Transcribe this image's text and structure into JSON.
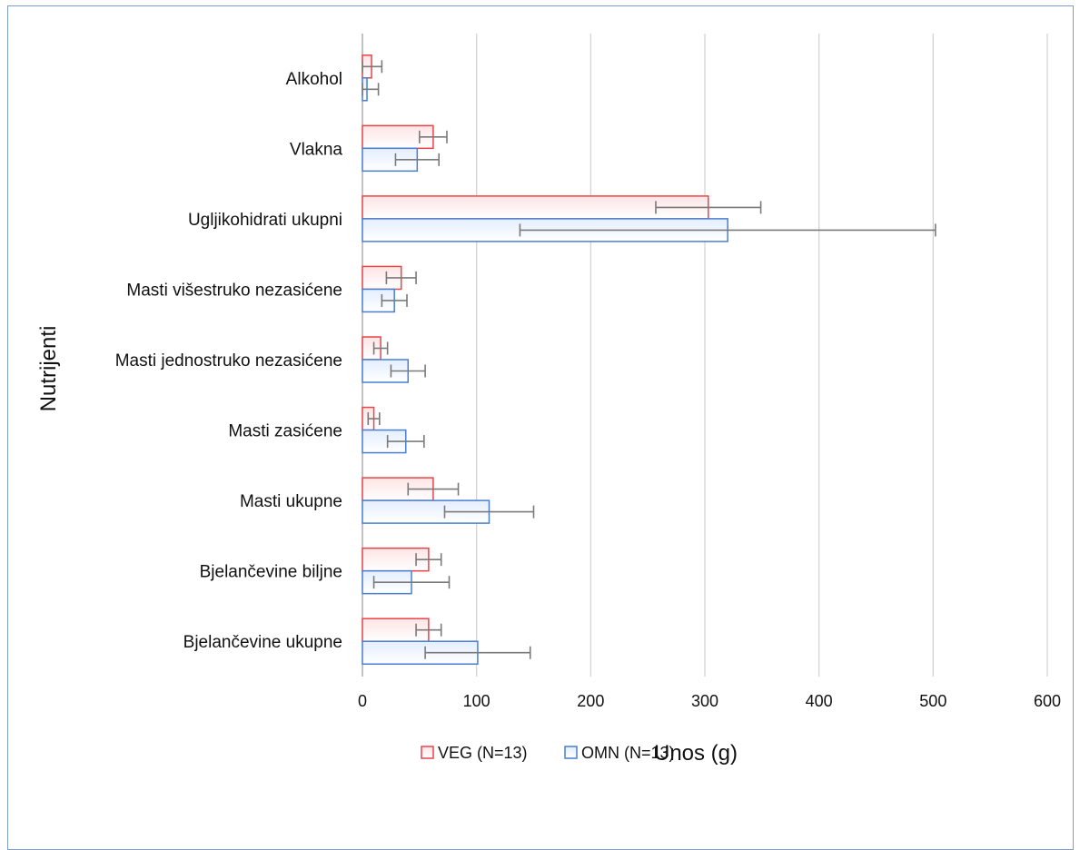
{
  "chart_data": {
    "type": "bar",
    "orientation": "horizontal",
    "categories": [
      "Bjelančevine ukupne",
      "Bjelančevine biljne",
      "Masti ukupne",
      "Masti zasićene",
      "Masti jednostruko nezasićene",
      "Masti višestruko nezasićene",
      "Ugljikohidrati ukupni",
      "Vlakna",
      "Alkohol"
    ],
    "series": [
      {
        "name": "VEG (N=13)",
        "color": "#e8444a",
        "fill_light": "#fde4e4",
        "values": [
          58,
          58,
          62,
          10,
          16,
          34,
          303,
          62,
          8
        ],
        "errors": [
          11,
          11,
          22,
          5,
          6,
          13,
          46,
          12,
          9
        ]
      },
      {
        "name": "OMN (N=13)",
        "color": "#4a7fd0",
        "fill_light": "#e4eeff",
        "values": [
          101,
          43,
          111,
          38,
          40,
          28,
          320,
          48,
          4
        ],
        "errors": [
          46,
          33,
          39,
          16,
          15,
          11,
          182,
          19,
          10
        ]
      }
    ],
    "xlabel": "Unos (g)",
    "ylabel": "Nutrijenti",
    "xlim": [
      0,
      600
    ],
    "xticks": [
      0,
      100,
      200,
      300,
      400,
      500,
      600
    ],
    "grid": "vertical",
    "legend": "bottom"
  }
}
